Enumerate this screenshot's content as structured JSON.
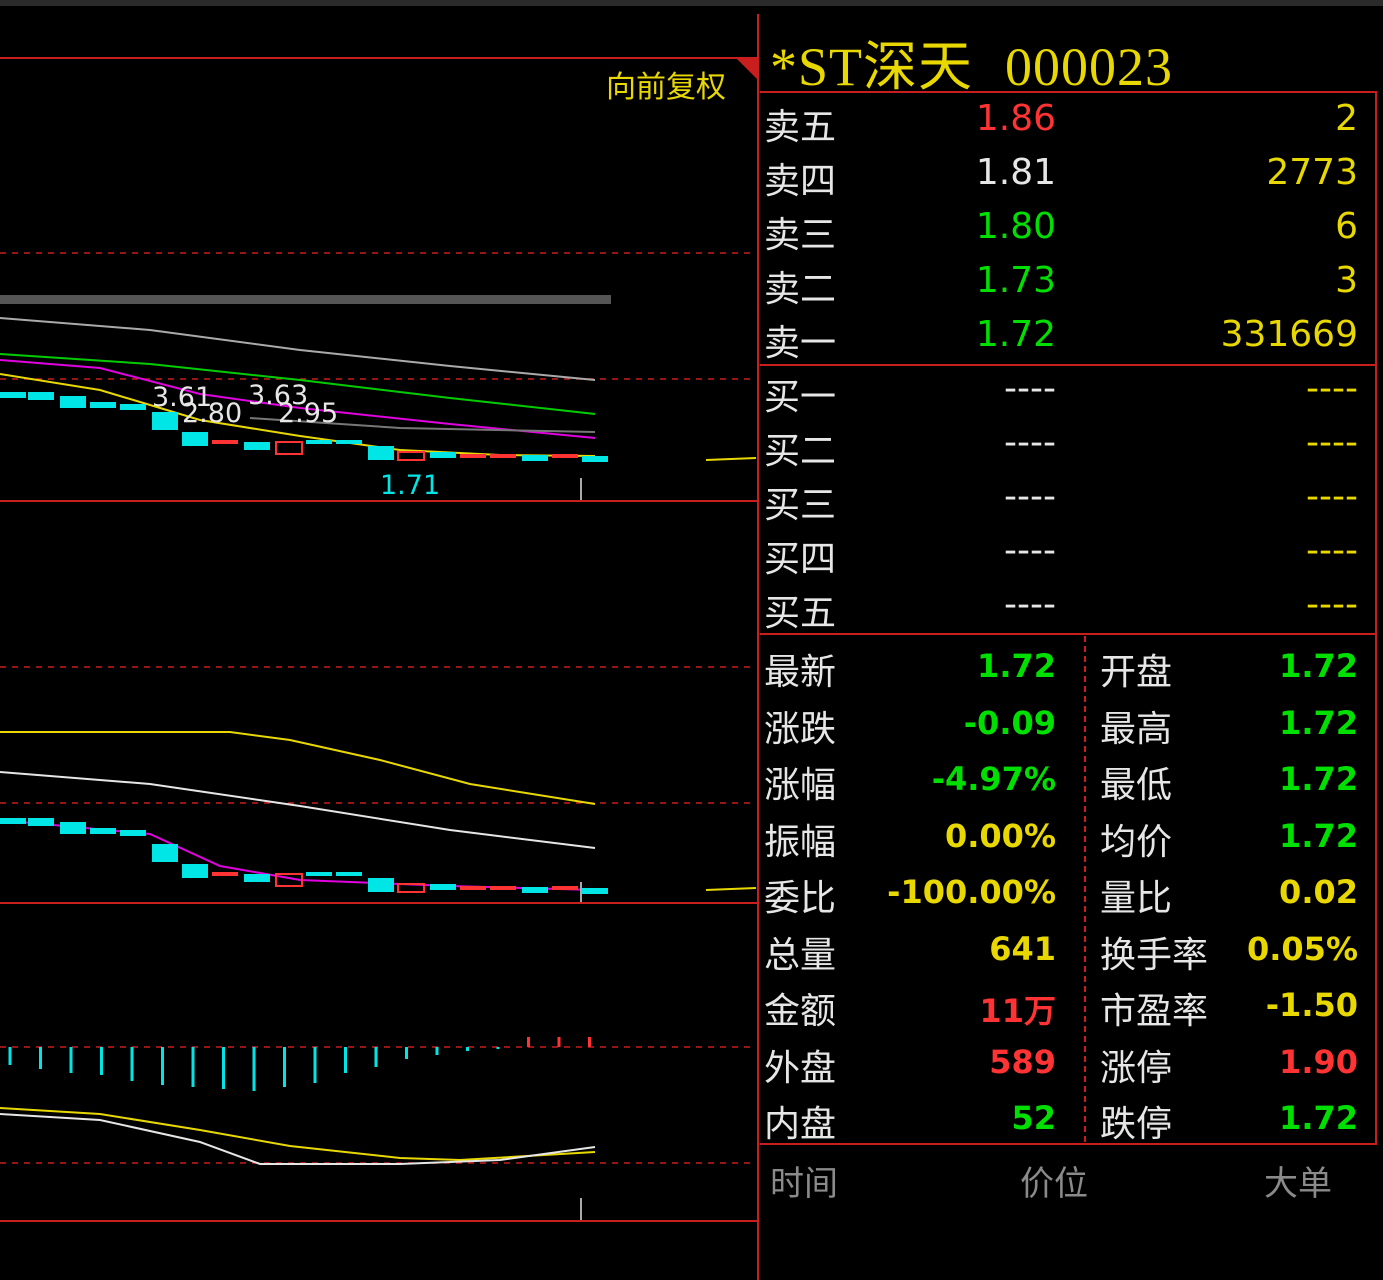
{
  "chart": {
    "adjust_label": "向前复权",
    "annotations": [
      "3.61",
      "3.63",
      "2.80",
      "2.95",
      "1.71"
    ]
  },
  "stock": {
    "name": "*ST深天",
    "code": "000023"
  },
  "colors": {
    "up": "#ff3333",
    "down": "#00e000",
    "flat": "#e6e6e6",
    "yellow": "#e8d800",
    "grid": "#c81e1e",
    "cyan": "#00e5e5"
  },
  "asks": [
    {
      "label": "卖五",
      "price": "1.86",
      "volume": "2",
      "color": "#ff3333"
    },
    {
      "label": "卖四",
      "price": "1.81",
      "volume": "2773",
      "color": "#e6e6e6"
    },
    {
      "label": "卖三",
      "price": "1.80",
      "volume": "6",
      "color": "#00e000"
    },
    {
      "label": "卖二",
      "price": "1.73",
      "volume": "3",
      "color": "#00e000"
    },
    {
      "label": "卖一",
      "price": "1.72",
      "volume": "331669",
      "color": "#00e000"
    }
  ],
  "bids": [
    {
      "label": "买一",
      "price": "----",
      "volume": "----"
    },
    {
      "label": "买二",
      "price": "----",
      "volume": "----"
    },
    {
      "label": "买三",
      "price": "----",
      "volume": "----"
    },
    {
      "label": "买四",
      "price": "----",
      "volume": "----"
    },
    {
      "label": "买五",
      "price": "----",
      "volume": "----"
    }
  ],
  "stats_left": [
    {
      "label": "最新",
      "value": "1.72",
      "color": "#00e000"
    },
    {
      "label": "涨跌",
      "value": "-0.09",
      "color": "#00e000"
    },
    {
      "label": "涨幅",
      "value": "-4.97%",
      "color": "#00e000"
    },
    {
      "label": "振幅",
      "value": "0.00%",
      "color": "#e8d800"
    },
    {
      "label": "委比",
      "value": "-100.00%",
      "color": "#e8d800"
    },
    {
      "label": "总量",
      "value": "641",
      "color": "#e8d800"
    },
    {
      "label": "金额",
      "value": "11万",
      "color": "#ff3333"
    },
    {
      "label": "外盘",
      "value": "589",
      "color": "#ff3333"
    },
    {
      "label": "内盘",
      "value": "52",
      "color": "#00e000"
    }
  ],
  "stats_right": [
    {
      "label": "开盘",
      "value": "1.72",
      "color": "#00e000"
    },
    {
      "label": "最高",
      "value": "1.72",
      "color": "#00e000"
    },
    {
      "label": "最低",
      "value": "1.72",
      "color": "#00e000"
    },
    {
      "label": "均价",
      "value": "1.72",
      "color": "#00e000"
    },
    {
      "label": "量比",
      "value": "0.02",
      "color": "#e8d800"
    },
    {
      "label": "换手率",
      "value": "0.05%",
      "color": "#e8d800"
    },
    {
      "label": "市盈率",
      "value": "-1.50",
      "color": "#e8d800"
    },
    {
      "label": "涨停",
      "value": "1.90",
      "color": "#ff3333"
    },
    {
      "label": "跌停",
      "value": "1.72",
      "color": "#00e000"
    }
  ],
  "trades_header": {
    "time": "时间",
    "price": "价位",
    "big": "大单"
  }
}
